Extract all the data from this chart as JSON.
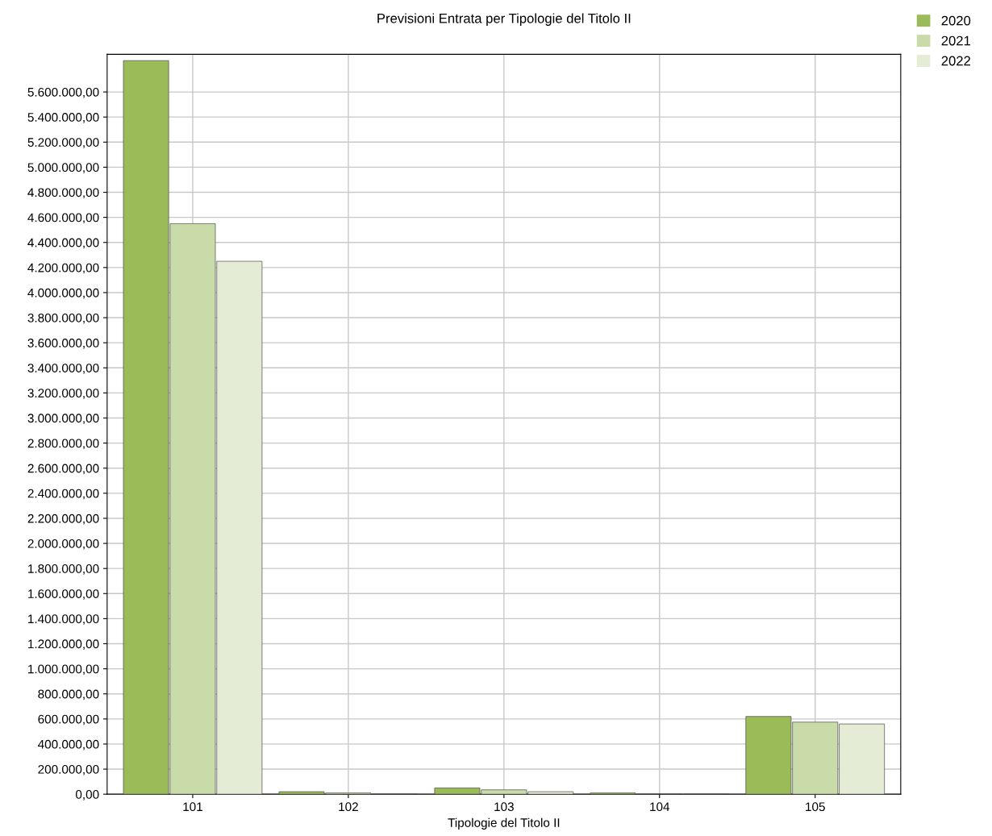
{
  "chart_data": {
    "type": "bar",
    "title": "Previsioni Entrata per Tipologie del Titolo II",
    "xlabel": "Tipologie del Titolo II",
    "categories": [
      "101",
      "102",
      "103",
      "104",
      "105"
    ],
    "series": [
      {
        "name": "2020",
        "color": "#9bbb59",
        "values": [
          5850000,
          20000,
          50000,
          10000,
          620000
        ]
      },
      {
        "name": "2021",
        "color": "#c9dba8",
        "values": [
          4550000,
          10000,
          35000,
          null,
          575000
        ]
      },
      {
        "name": "2022",
        "color": "#e4ecd5",
        "values": [
          4250000,
          null,
          20000,
          null,
          560000
        ]
      }
    ],
    "ylim": [
      0,
      5900000
    ],
    "yticks": [
      {
        "value": 0,
        "label": "0,00"
      },
      {
        "value": 200000,
        "label": "200.000,00"
      },
      {
        "value": 400000,
        "label": "400.000,00"
      },
      {
        "value": 600000,
        "label": "600.000,00"
      },
      {
        "value": 800000,
        "label": "800.000,00"
      },
      {
        "value": 1000000,
        "label": "1.000.000,00"
      },
      {
        "value": 1200000,
        "label": "1.200.000,00"
      },
      {
        "value": 1400000,
        "label": "1.400.000,00"
      },
      {
        "value": 1600000,
        "label": "1.600.000,00"
      },
      {
        "value": 1800000,
        "label": "1.800.000,00"
      },
      {
        "value": 2000000,
        "label": "2.000.000,00"
      },
      {
        "value": 2200000,
        "label": "2.200.000,00"
      },
      {
        "value": 2400000,
        "label": "2.400.000,00"
      },
      {
        "value": 2600000,
        "label": "2.600.000,00"
      },
      {
        "value": 2800000,
        "label": "2.800.000,00"
      },
      {
        "value": 3000000,
        "label": "3.000.000,00"
      },
      {
        "value": 3200000,
        "label": "3.200.000,00"
      },
      {
        "value": 3400000,
        "label": "3.400.000,00"
      },
      {
        "value": 3600000,
        "label": "3.600.000,00"
      },
      {
        "value": 3800000,
        "label": "3.800.000,00"
      },
      {
        "value": 4000000,
        "label": "4.000.000,00"
      },
      {
        "value": 4200000,
        "label": "4.200.000,00"
      },
      {
        "value": 4400000,
        "label": "4.400.000,00"
      },
      {
        "value": 4600000,
        "label": "4.600.000,00"
      },
      {
        "value": 4800000,
        "label": "4.800.000,00"
      },
      {
        "value": 5000000,
        "label": "5.000.000,00"
      },
      {
        "value": 5200000,
        "label": "5.200.000,00"
      },
      {
        "value": 5400000,
        "label": "5.400.000,00"
      },
      {
        "value": 5600000,
        "label": "5.600.000,00"
      }
    ],
    "grid": true,
    "legend": "top right"
  }
}
